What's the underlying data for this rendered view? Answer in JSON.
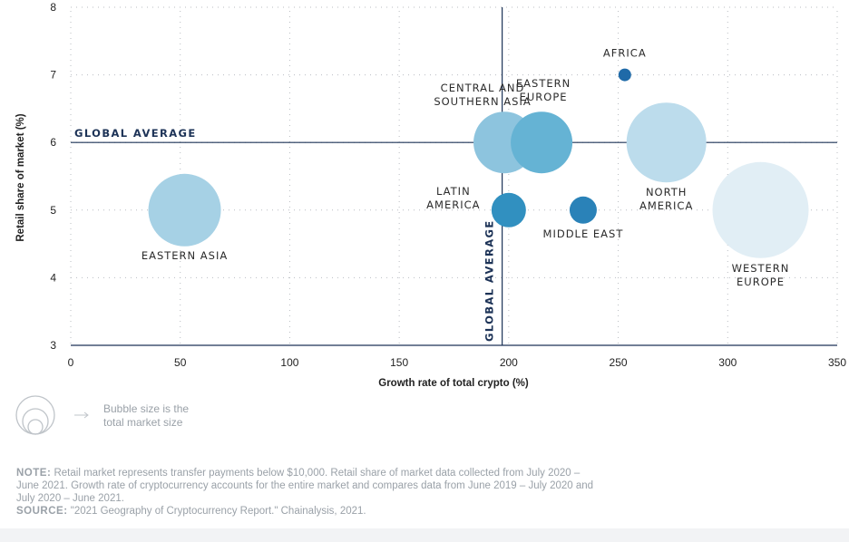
{
  "chart_data": {
    "type": "bubble",
    "xlabel": "Growth rate of total crypto (%)",
    "ylabel": "Retail share of market (%)",
    "xlim": [
      0,
      350
    ],
    "ylim": [
      3,
      8
    ],
    "x_ticks": [
      0,
      50,
      100,
      150,
      200,
      250,
      300,
      350
    ],
    "y_ticks": [
      3,
      4,
      5,
      6,
      7,
      8
    ],
    "grid": "dotted",
    "global_average": {
      "x": 197,
      "y": 6,
      "x_label": "GLOBAL AVERAGE",
      "y_label": "GLOBAL AVERAGE"
    },
    "series": [
      {
        "name": "Central and Southern Asia",
        "label": [
          "CENTRAL AND",
          "SOUTHERN ASIA"
        ],
        "x": 198,
        "y": 6.0,
        "size": 34,
        "color": "#8dc4de"
      },
      {
        "name": "Eastern Europe",
        "label": [
          "EASTERN",
          "EUROPE"
        ],
        "x": 215,
        "y": 6.0,
        "size": 34,
        "color": "#65b3d4"
      },
      {
        "name": "Africa",
        "label": [
          "AFRICA"
        ],
        "x": 253,
        "y": 7.0,
        "size": 7,
        "color": "#1f6aa8"
      },
      {
        "name": "North America",
        "label": [
          "NORTH",
          "AMERICA"
        ],
        "x": 272,
        "y": 6.0,
        "size": 44,
        "color": "#bcdcec"
      },
      {
        "name": "Eastern Asia",
        "label": [
          "EASTERN ASIA"
        ],
        "x": 52,
        "y": 5.0,
        "size": 40,
        "color": "#a6d1e5"
      },
      {
        "name": "Latin America",
        "label": [
          "LATIN",
          "AMERICA"
        ],
        "x": 200,
        "y": 5.0,
        "size": 19,
        "color": "#3190c0"
      },
      {
        "name": "Middle East",
        "label": [
          "MIDDLE EAST"
        ],
        "x": 234,
        "y": 5.0,
        "size": 15,
        "color": "#2a82b8"
      },
      {
        "name": "Western Europe",
        "label": [
          "WESTERN",
          "EUROPE"
        ],
        "x": 315,
        "y": 5.0,
        "size": 53,
        "color": "#e1eef5"
      }
    ]
  },
  "legend": {
    "text_line1": "Bubble size is the",
    "text_line2": "total market size"
  },
  "note": {
    "note_label": "NOTE:",
    "note_text": "Retail market represents transfer payments below $10,000. Retail share of market data collected from July 2020 – June 2021. Growth rate of cryptocurrency accounts for the entire market and compares data from June 2019 – July 2020 and July 2020 – June 2021.",
    "source_label": "SOURCE:",
    "source_text": "\"2021 Geography of Cryptocurrency Report.\" Chainalysis, 2021."
  }
}
